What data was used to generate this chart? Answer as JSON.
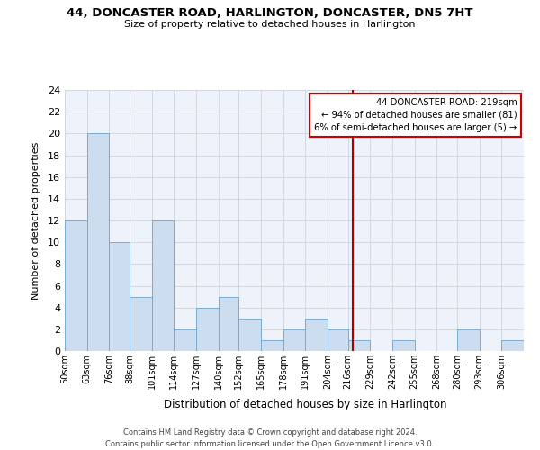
{
  "title": "44, DONCASTER ROAD, HARLINGTON, DONCASTER, DN5 7HT",
  "subtitle": "Size of property relative to detached houses in Harlington",
  "xlabel": "Distribution of detached houses by size in Harlington",
  "ylabel": "Number of detached properties",
  "bin_labels": [
    "50sqm",
    "63sqm",
    "76sqm",
    "88sqm",
    "101sqm",
    "114sqm",
    "127sqm",
    "140sqm",
    "152sqm",
    "165sqm",
    "178sqm",
    "191sqm",
    "204sqm",
    "216sqm",
    "229sqm",
    "242sqm",
    "255sqm",
    "268sqm",
    "280sqm",
    "293sqm",
    "306sqm"
  ],
  "bar_heights": [
    12,
    20,
    10,
    5,
    12,
    2,
    4,
    5,
    3,
    1,
    2,
    3,
    2,
    1,
    0,
    1,
    0,
    0,
    2,
    0,
    1
  ],
  "bar_color": "#ccddef",
  "bar_edge_color": "#7aaad0",
  "grid_color": "#cccccc",
  "background_color": "#ffffff",
  "plot_bg_color": "#eef2fb",
  "red_line_x": 219,
  "red_line_color": "#aa0000",
  "annotation_title": "44 DONCASTER ROAD: 219sqm",
  "annotation_line1": "← 94% of detached houses are smaller (81)",
  "annotation_line2": "6% of semi-detached houses are larger (5) →",
  "annotation_box_color": "#ffffff",
  "annotation_border_color": "#cc0000",
  "ylim": [
    0,
    24
  ],
  "yticks": [
    0,
    2,
    4,
    6,
    8,
    10,
    12,
    14,
    16,
    18,
    20,
    22,
    24
  ],
  "footer_line1": "Contains HM Land Registry data © Crown copyright and database right 2024.",
  "footer_line2": "Contains public sector information licensed under the Open Government Licence v3.0.",
  "bin_edges": [
    50,
    63,
    76,
    88,
    101,
    114,
    127,
    140,
    152,
    165,
    178,
    191,
    204,
    216,
    229,
    242,
    255,
    268,
    280,
    293,
    306,
    319
  ]
}
